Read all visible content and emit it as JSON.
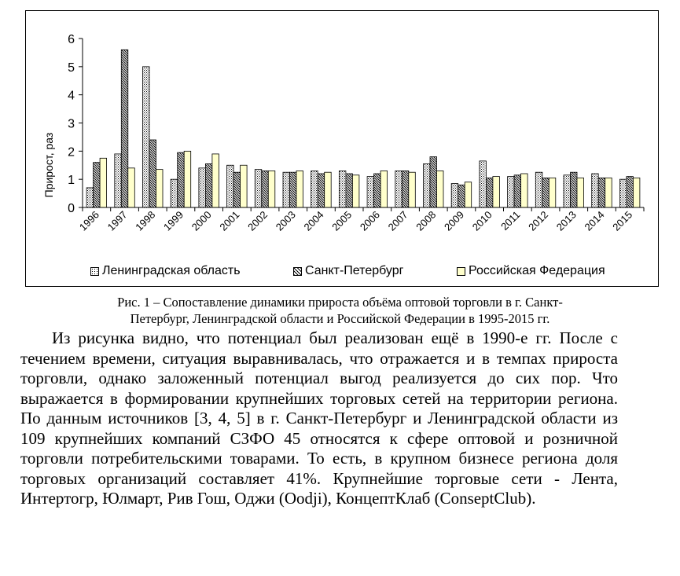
{
  "chart_data": {
    "type": "bar",
    "title": "",
    "xlabel": "",
    "ylabel": "Прирост, раз",
    "ylim": [
      0,
      6
    ],
    "yticks": [
      "0",
      "1",
      "2",
      "3",
      "4",
      "5",
      "6"
    ],
    "categories": [
      "1996",
      "1997",
      "1998",
      "1999",
      "2000",
      "2001",
      "2002",
      "2003",
      "2004",
      "2005",
      "2006",
      "2007",
      "2008",
      "2009",
      "2010",
      "2011",
      "2012",
      "2013",
      "2014",
      "2015"
    ],
    "legend_position": "bottom",
    "series": [
      {
        "name": "Ленинградская область",
        "pattern": "dots",
        "color": "#ffffff",
        "values": [
          0.7,
          1.9,
          5.0,
          1.0,
          1.4,
          1.5,
          1.35,
          1.25,
          1.3,
          1.3,
          1.1,
          1.3,
          1.55,
          0.85,
          1.65,
          1.1,
          1.25,
          1.15,
          1.2,
          1.0
        ]
      },
      {
        "name": "Санкт-Петербург",
        "pattern": "diagonal",
        "color": "#ffffff",
        "values": [
          1.6,
          5.6,
          2.4,
          1.95,
          1.55,
          1.25,
          1.3,
          1.25,
          1.2,
          1.2,
          1.2,
          1.3,
          1.8,
          0.8,
          1.05,
          1.15,
          1.05,
          1.25,
          1.05,
          1.1
        ]
      },
      {
        "name": "Российская Федерация",
        "pattern": "solid",
        "color": "#ffffcc",
        "values": [
          1.75,
          1.4,
          1.35,
          2.0,
          1.9,
          1.5,
          1.3,
          1.3,
          1.25,
          1.15,
          1.3,
          1.25,
          1.3,
          0.9,
          1.1,
          1.2,
          1.05,
          1.05,
          1.05,
          1.05
        ]
      }
    ]
  },
  "legend": {
    "item1": "Ленинградская область",
    "item2": "Санкт-Петербург",
    "item3": "Российская Федерация"
  },
  "caption": {
    "line1": "Рис. 1 – Сопоставление динамики прироста объёма оптовой торговли в г. Санкт-",
    "line2": "Петербург, Ленинградской области и Российской Федерации в 1995-2015 гг."
  },
  "paragraph": "Из рисунка видно, что потенциал был реализован ещё в 1990-е гг. После с течением времени, ситуация выравнивалась, что отражается и в темпах прироста торговли, однако заложенный потенциал выгод реализуется до сих пор. Что выражается в формировании крупнейших торговых сетей на территории региона. По данным источников [3, 4, 5] в г. Санкт-Петербург и Ленинградской области из 109 крупнейших компаний СЗФО 45 относятся к сфере оптовой и розничной торговли потребительскими товарами. То есть, в крупном бизнесе региона доля торговых организаций составляет 41%. Крупнейшие торговые сети - Лента, Интертогр, Юлмарт, Рив Гош, Оджи (Oodji), КонцептКлаб (ConseptClub)."
}
